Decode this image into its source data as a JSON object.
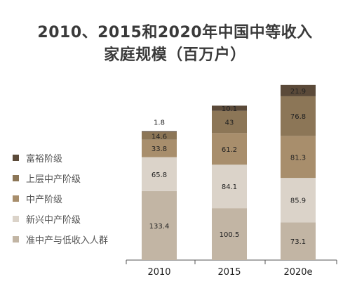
{
  "title": {
    "line1": "2010、2015和2020年中国中等收入",
    "line2": "家庭规模（百万户）"
  },
  "chart_data": {
    "type": "bar",
    "stacked": true,
    "title": "2010、2015和2020年中国中等收入家庭规模（百万户）",
    "categories": [
      "2010",
      "2015",
      "2020e"
    ],
    "series": [
      {
        "name": "准中产与低收入人群",
        "color": "#c2b5a4",
        "values": [
          133.4,
          100.5,
          73.1
        ]
      },
      {
        "name": "新兴中产阶级",
        "color": "#dbd3c9",
        "values": [
          65.8,
          84.1,
          85.9
        ]
      },
      {
        "name": "中产阶级",
        "color": "#a88e6c",
        "values": [
          33.8,
          61.2,
          81.3
        ]
      },
      {
        "name": "上层中产阶级",
        "color": "#8c7657",
        "values": [
          14.6,
          43,
          76.8
        ]
      },
      {
        "name": "富裕阶级",
        "color": "#5b4a39",
        "values": [
          1.8,
          10.1,
          21.9
        ]
      }
    ],
    "value_labels": [
      [
        "133.4",
        "100.5",
        "73.1"
      ],
      [
        "65.8",
        "84.1",
        "85.9"
      ],
      [
        "33.8",
        "61.2",
        "81.3"
      ],
      [
        "14.6",
        "43",
        "76.8"
      ],
      [
        "1.8",
        "10.1",
        "21.9"
      ]
    ],
    "legend_order": [
      "富裕阶级",
      "上层中产阶级",
      "中产阶级",
      "新兴中产阶级",
      "准中产与低收入人群"
    ],
    "legend_position": "left",
    "grid": false
  }
}
